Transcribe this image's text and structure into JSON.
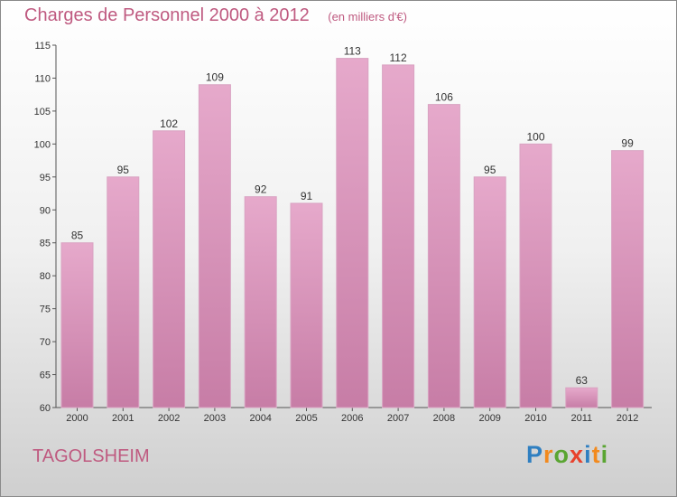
{
  "chart_data": {
    "type": "bar",
    "title": "Charges de Personnel 2000 à 2012",
    "unit": "(en milliers d'€)",
    "categories": [
      "2000",
      "2001",
      "2002",
      "2003",
      "2004",
      "2005",
      "2006",
      "2007",
      "2008",
      "2009",
      "2010",
      "2011",
      "2012"
    ],
    "values": [
      85,
      95,
      102,
      109,
      92,
      91,
      113,
      112,
      106,
      95,
      100,
      63,
      99
    ],
    "ylim": [
      60,
      115
    ],
    "yticks": [
      60,
      65,
      70,
      75,
      80,
      85,
      90,
      95,
      100,
      105,
      110,
      115
    ],
    "grid": false,
    "bar_color": "#c77da6",
    "bar_color_light": "#e6a9cb"
  },
  "location": "TAGOLSHEIM",
  "brand": {
    "letters": [
      "P",
      "r",
      "o",
      "x",
      "i",
      "t",
      "i"
    ],
    "colors": [
      "#2f7fc1",
      "#f28a1e",
      "#5aa532",
      "#e8412c",
      "#2f7fc1",
      "#f28a1e",
      "#5aa532"
    ]
  }
}
